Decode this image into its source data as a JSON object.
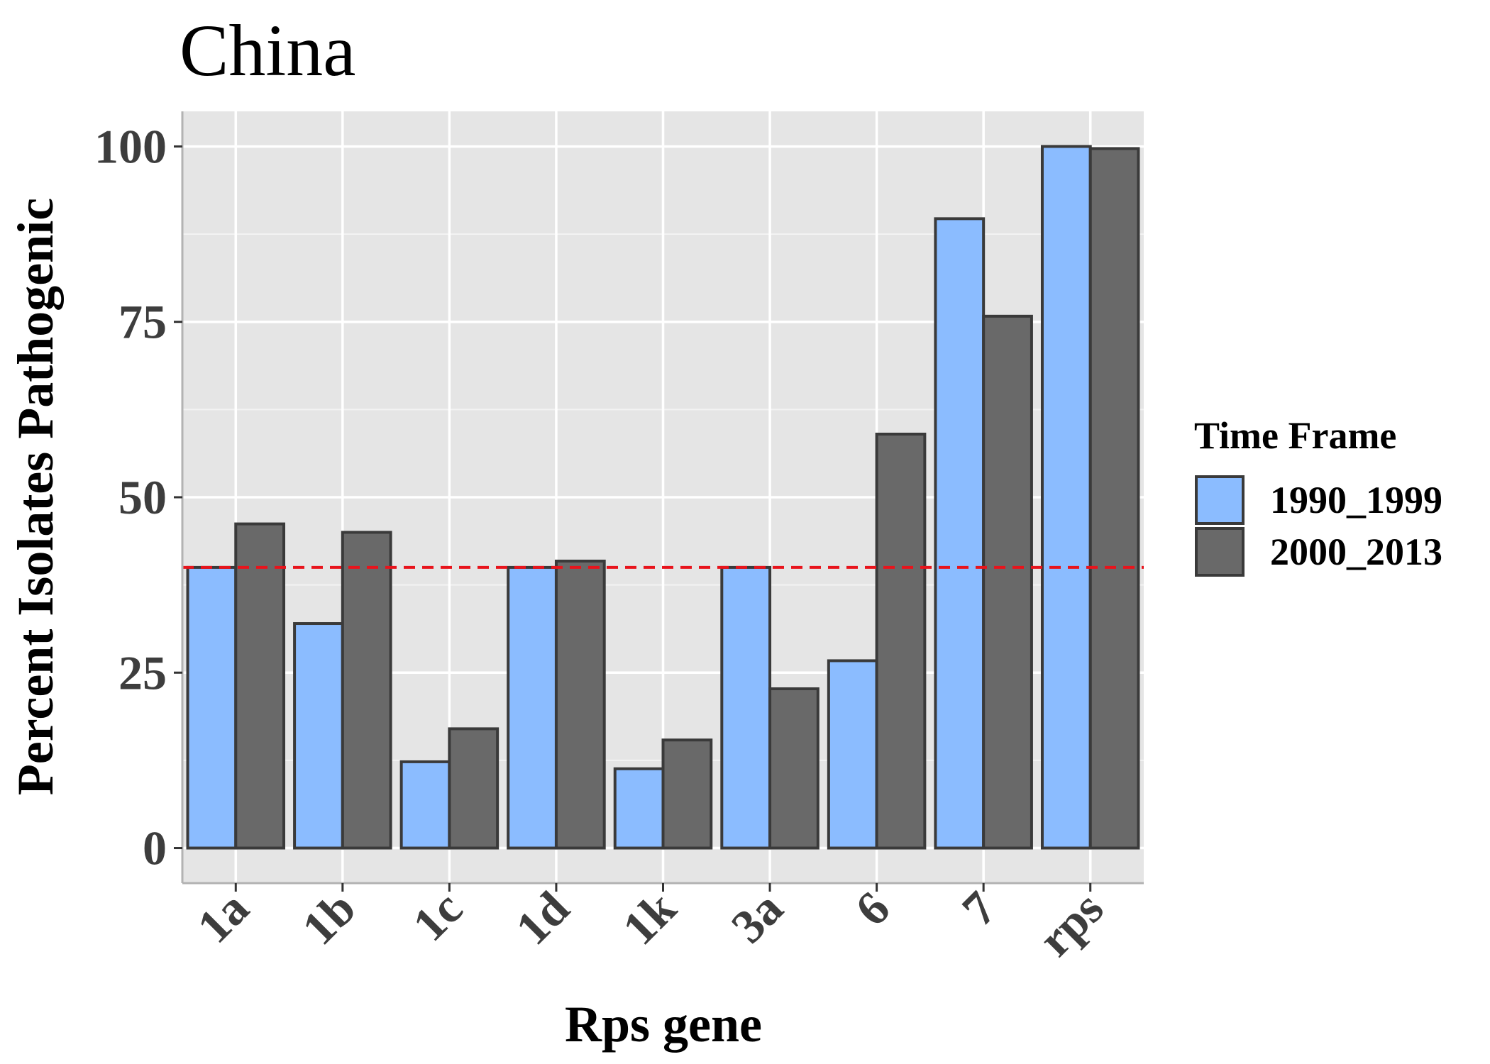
{
  "chart_data": {
    "type": "bar",
    "title": "China",
    "xlabel": "Rps gene",
    "ylabel": "Percent Isolates Pathogenic",
    "categories": [
      "1a",
      "1b",
      "1c",
      "1d",
      "1k",
      "3a",
      "6",
      "7",
      "rps"
    ],
    "series": [
      {
        "name": "1990_1999",
        "color": "#8bbcff",
        "values": [
          40,
          32,
          12.3,
          40,
          11.3,
          40,
          26.7,
          89.7,
          100
        ]
      },
      {
        "name": "2000_2013",
        "color": "#696969",
        "values": [
          46.2,
          45,
          17,
          40.9,
          15.4,
          22.7,
          59,
          75.8,
          99.7
        ]
      }
    ],
    "yticks": [
      0,
      25,
      50,
      75,
      100
    ],
    "ylim": [
      -5,
      105
    ],
    "reference_line": {
      "y": 40,
      "color": "#e8141c",
      "style": "dashed"
    },
    "legend": {
      "title": "Time Frame",
      "position": "right"
    },
    "panel_background": "#e5e5e5",
    "grid": true
  }
}
